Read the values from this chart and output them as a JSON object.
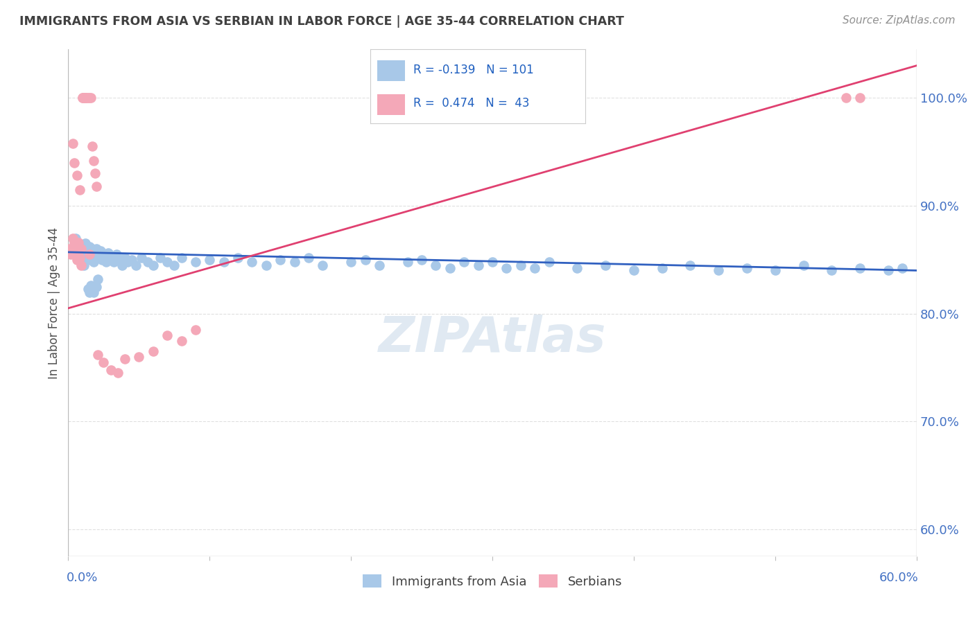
{
  "title": "IMMIGRANTS FROM ASIA VS SERBIAN IN LABOR FORCE | AGE 35-44 CORRELATION CHART",
  "source": "Source: ZipAtlas.com",
  "ylabel": "In Labor Force | Age 35-44",
  "ylabel_right_ticks": [
    "100.0%",
    "90.0%",
    "80.0%",
    "70.0%",
    "60.0%"
  ],
  "ylabel_right_values": [
    1.0,
    0.9,
    0.8,
    0.7,
    0.6
  ],
  "xmin": 0.0,
  "xmax": 0.6,
  "ymin": 0.575,
  "ymax": 1.045,
  "blue_R": -0.139,
  "blue_N": 101,
  "pink_R": 0.474,
  "pink_N": 43,
  "blue_color": "#a8c8e8",
  "pink_color": "#f4a8b8",
  "blue_line_color": "#3060c0",
  "pink_line_color": "#e04070",
  "legend_R_color": "#2060c0",
  "title_color": "#404040",
  "source_color": "#909090",
  "axis_color": "#4472c4",
  "grid_color": "#e0e0e0",
  "blue_line_x0": 0.0,
  "blue_line_y0": 0.857,
  "blue_line_x1": 0.6,
  "blue_line_y1": 0.84,
  "pink_line_x0": 0.0,
  "pink_line_y0": 0.805,
  "pink_line_x1": 0.6,
  "pink_line_y1": 1.03,
  "blue_scatter_x": [
    0.003,
    0.004,
    0.005,
    0.006,
    0.006,
    0.007,
    0.007,
    0.008,
    0.008,
    0.009,
    0.009,
    0.01,
    0.01,
    0.011,
    0.011,
    0.012,
    0.012,
    0.013,
    0.013,
    0.014,
    0.014,
    0.015,
    0.015,
    0.016,
    0.016,
    0.017,
    0.017,
    0.018,
    0.018,
    0.019,
    0.02,
    0.02,
    0.021,
    0.022,
    0.023,
    0.024,
    0.025,
    0.026,
    0.027,
    0.028,
    0.03,
    0.032,
    0.034,
    0.036,
    0.038,
    0.04,
    0.042,
    0.045,
    0.048,
    0.052,
    0.056,
    0.06,
    0.065,
    0.07,
    0.075,
    0.08,
    0.09,
    0.1,
    0.11,
    0.12,
    0.13,
    0.14,
    0.15,
    0.16,
    0.17,
    0.18,
    0.2,
    0.21,
    0.22,
    0.24,
    0.25,
    0.26,
    0.27,
    0.28,
    0.29,
    0.3,
    0.31,
    0.32,
    0.33,
    0.34,
    0.36,
    0.38,
    0.4,
    0.42,
    0.44,
    0.46,
    0.48,
    0.5,
    0.52,
    0.54,
    0.56,
    0.58,
    0.59,
    0.014,
    0.015,
    0.016,
    0.017,
    0.018,
    0.019,
    0.02,
    0.021
  ],
  "blue_scatter_y": [
    0.86,
    0.855,
    0.87,
    0.855,
    0.862,
    0.85,
    0.858,
    0.855,
    0.863,
    0.848,
    0.856,
    0.852,
    0.86,
    0.845,
    0.855,
    0.858,
    0.865,
    0.85,
    0.858,
    0.853,
    0.86,
    0.855,
    0.862,
    0.85,
    0.858,
    0.853,
    0.86,
    0.855,
    0.848,
    0.856,
    0.852,
    0.86,
    0.856,
    0.853,
    0.858,
    0.85,
    0.855,
    0.852,
    0.848,
    0.856,
    0.852,
    0.848,
    0.855,
    0.85,
    0.845,
    0.852,
    0.848,
    0.85,
    0.845,
    0.852,
    0.848,
    0.845,
    0.852,
    0.848,
    0.845,
    0.852,
    0.848,
    0.85,
    0.848,
    0.852,
    0.848,
    0.845,
    0.85,
    0.848,
    0.852,
    0.845,
    0.848,
    0.85,
    0.845,
    0.848,
    0.85,
    0.845,
    0.842,
    0.848,
    0.845,
    0.848,
    0.842,
    0.845,
    0.842,
    0.848,
    0.842,
    0.845,
    0.84,
    0.842,
    0.845,
    0.84,
    0.842,
    0.84,
    0.845,
    0.84,
    0.842,
    0.84,
    0.842,
    0.823,
    0.82,
    0.826,
    0.822,
    0.82,
    0.825,
    0.825,
    0.832
  ],
  "pink_scatter_x": [
    0.001,
    0.002,
    0.003,
    0.003,
    0.004,
    0.004,
    0.005,
    0.005,
    0.006,
    0.006,
    0.007,
    0.007,
    0.008,
    0.008,
    0.009,
    0.009,
    0.01,
    0.01,
    0.011,
    0.011,
    0.012,
    0.012,
    0.013,
    0.014,
    0.015,
    0.015,
    0.016,
    0.017,
    0.018,
    0.019,
    0.02,
    0.021,
    0.025,
    0.03,
    0.035,
    0.04,
    0.05,
    0.06,
    0.07,
    0.08,
    0.09,
    0.55,
    0.56
  ],
  "pink_scatter_y": [
    0.86,
    0.855,
    0.958,
    0.87,
    0.865,
    0.94,
    0.855,
    0.862,
    0.928,
    0.85,
    0.856,
    0.866,
    0.852,
    0.915,
    0.86,
    0.845,
    1.0,
    1.0,
    1.0,
    1.0,
    1.0,
    1.0,
    1.0,
    1.0,
    1.0,
    0.855,
    1.0,
    0.955,
    0.942,
    0.93,
    0.918,
    0.762,
    0.755,
    0.748,
    0.745,
    0.758,
    0.76,
    0.765,
    0.78,
    0.775,
    0.785,
    1.0,
    1.0
  ]
}
